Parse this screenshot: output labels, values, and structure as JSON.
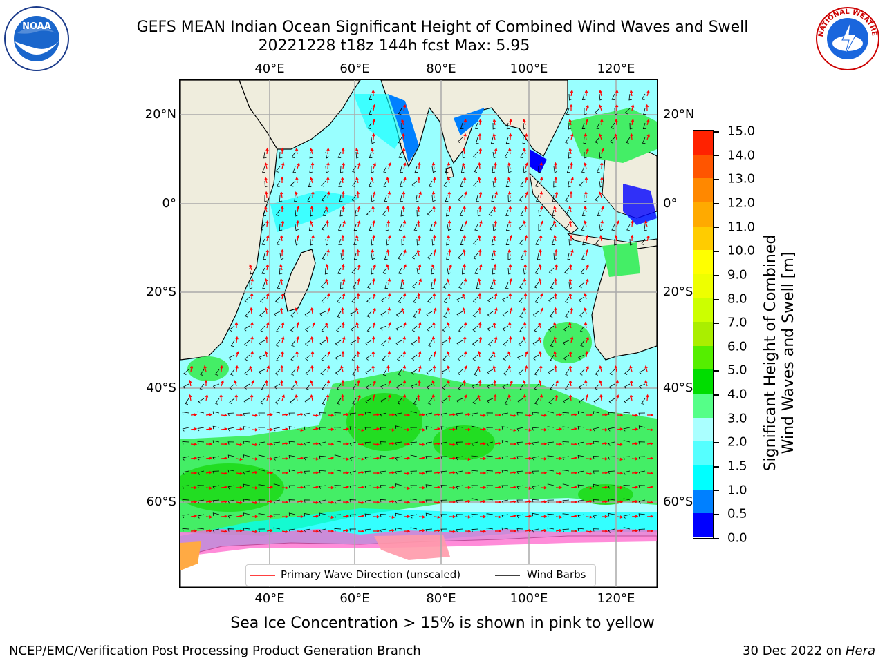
{
  "header": {
    "title_line1": "GEFS MEAN Indian Ocean Significant Height of Combined Wind Waves and Swell",
    "title_line2": "20221228 t18z 144h fcst   Max: 5.95"
  },
  "logos": {
    "noaa_text": "NOAA",
    "nws_text": "NATIONAL WEATHER SERVICE"
  },
  "map": {
    "lon_labels_top": [
      "40°E",
      "60°E",
      "80°E",
      "100°E",
      "120°E"
    ],
    "lon_labels_bottom": [
      "40°E",
      "60°E",
      "80°E",
      "100°E",
      "120°E"
    ],
    "lat_labels_left": [
      "20°N",
      "0°",
      "20°S",
      "40°S",
      "60°S"
    ],
    "lat_labels_right": [
      "20°N",
      "0°",
      "20°S",
      "40°S",
      "60°S"
    ],
    "colors": {
      "land": "#efeddd",
      "ocean_mid": "#99ffff",
      "ocean_cyan": "#00ffff",
      "green": "#44ee66",
      "deep_green": "#22dd22",
      "arrow": "#ff0000",
      "barb": "#000000"
    }
  },
  "legend": {
    "items": [
      {
        "label": "Primary Wave Direction (unscaled)",
        "color": "#ff0000"
      },
      {
        "label": "Wind Barbs",
        "color": "#000000"
      }
    ]
  },
  "colorbar": {
    "ticks": [
      "15.0",
      "14.0",
      "13.0",
      "12.0",
      "11.0",
      "10.0",
      "9.0",
      "8.0",
      "7.0",
      "6.0",
      "5.0",
      "4.0",
      "3.0",
      "2.0",
      "1.5",
      "1.0",
      "0.5",
      "0.0"
    ],
    "colors_bottom_to_top": [
      "#0000ff",
      "#0080ff",
      "#00ffff",
      "#55ffff",
      "#aaffff",
      "#55ff88",
      "#00dd00",
      "#55ee00",
      "#aaee00",
      "#ccff00",
      "#eeff00",
      "#ffff00",
      "#ffcc00",
      "#ffaa00",
      "#ff8800",
      "#ff5500",
      "#ff2200"
    ],
    "label_line1": "Significant Height of Combined",
    "label_line2": "Wind Waves and Swell [m]"
  },
  "notes": {
    "sea_ice": "Sea Ice Concentration > 15% is shown in pink to yellow"
  },
  "footer": {
    "left": "NCEP/EMC/Verification Post Processing Product Generation Branch",
    "right_prefix": "30 Dec 2022 on ",
    "right_host": "Hera"
  }
}
